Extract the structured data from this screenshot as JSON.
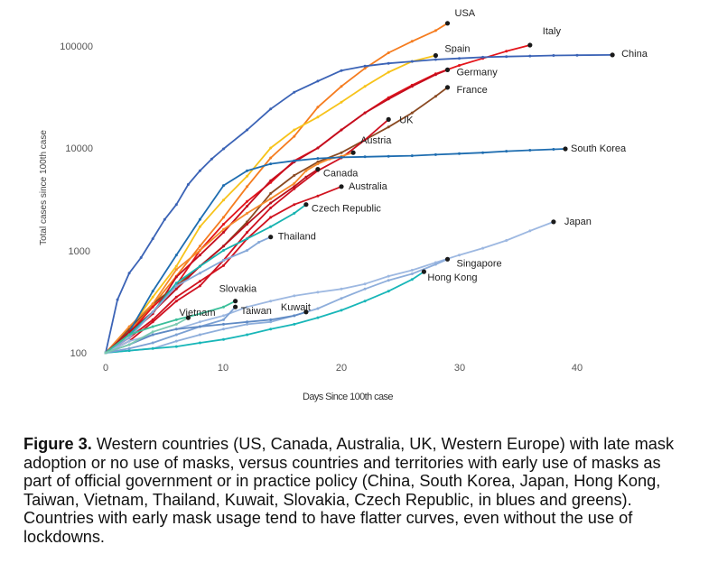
{
  "chart_data": {
    "type": "line",
    "xlabel": "Days Since 100th case",
    "ylabel": "Total cases since 100th case",
    "y_scale": "log",
    "xlim": [
      0,
      43
    ],
    "ylim": [
      100,
      150000
    ],
    "x_ticks": [
      "0",
      "10",
      "20",
      "30",
      "40"
    ],
    "y_ticks": [
      "100",
      "1000",
      "10000",
      "100000"
    ],
    "grid": false,
    "series": [
      {
        "name": "USA",
        "color": "#f57c1f",
        "x": [
          0,
          2,
          4,
          6,
          8,
          10,
          12,
          14,
          16,
          18,
          20,
          22,
          24,
          26,
          28,
          29
        ],
        "y": [
          100,
          160,
          290,
          560,
          1100,
          2100,
          4200,
          8000,
          13000,
          25000,
          40000,
          60000,
          85000,
          110000,
          140000,
          165000
        ]
      },
      {
        "name": "Spain",
        "color": "#f7c31a",
        "x": [
          0,
          2,
          4,
          6,
          8,
          10,
          12,
          14,
          16,
          18,
          20,
          22,
          24,
          26,
          28
        ],
        "y": [
          100,
          170,
          350,
          700,
          1700,
          3100,
          5300,
          10000,
          15000,
          20000,
          28000,
          40000,
          55000,
          70000,
          80000
        ]
      },
      {
        "name": "Italy",
        "color": "#e4141b",
        "x": [
          0,
          2,
          4,
          6,
          8,
          10,
          12,
          14,
          16,
          18,
          20,
          22,
          24,
          26,
          28,
          30,
          32,
          34,
          36
        ],
        "y": [
          100,
          155,
          280,
          460,
          1000,
          1800,
          3000,
          4600,
          7500,
          10000,
          15000,
          22000,
          31000,
          41000,
          53000,
          64000,
          75000,
          88000,
          101000
        ]
      },
      {
        "name": "China",
        "color": "#3b63b6",
        "x": [
          0,
          1,
          2,
          3,
          4,
          5,
          6,
          7,
          8,
          9,
          10,
          12,
          14,
          16,
          18,
          20,
          22,
          24,
          26,
          28,
          30,
          32,
          34,
          36,
          38,
          40,
          43
        ],
        "y": [
          100,
          330,
          600,
          850,
          1300,
          2000,
          2800,
          4400,
          6000,
          7800,
          9800,
          15000,
          24000,
          35000,
          45000,
          57000,
          63000,
          67000,
          70000,
          73000,
          75000,
          77000,
          78000,
          79000,
          80000,
          80500,
          81000
        ]
      },
      {
        "name": "Germany",
        "color": "#c40d1e",
        "x": [
          0,
          2,
          4,
          6,
          8,
          10,
          12,
          14,
          16,
          18,
          20,
          22,
          24,
          26,
          28,
          29
        ],
        "y": [
          100,
          150,
          240,
          550,
          900,
          1500,
          2700,
          4800,
          7300,
          10000,
          15000,
          22000,
          30000,
          40000,
          52000,
          58000
        ]
      },
      {
        "name": "France",
        "color": "#8a4a22",
        "x": [
          0,
          2,
          4,
          6,
          8,
          10,
          12,
          14,
          16,
          18,
          20,
          22,
          24,
          26,
          28,
          29
        ],
        "y": [
          100,
          170,
          300,
          450,
          700,
          1100,
          1900,
          3600,
          5400,
          7300,
          9000,
          12000,
          16000,
          22000,
          32000,
          39000
        ]
      },
      {
        "name": "UK",
        "color": "#cf1020",
        "x": [
          0,
          2,
          4,
          6,
          8,
          10,
          12,
          14,
          16,
          18,
          20,
          22,
          24
        ],
        "y": [
          100,
          130,
          200,
          320,
          450,
          800,
          1500,
          2600,
          4000,
          6000,
          8000,
          12000,
          19000
        ]
      },
      {
        "name": "Austria",
        "color": "#f58a2a",
        "x": [
          0,
          2,
          4,
          6,
          8,
          10,
          12,
          14,
          16,
          17,
          18,
          19,
          20,
          21
        ],
        "y": [
          100,
          180,
          300,
          650,
          1000,
          1600,
          2300,
          3200,
          4500,
          6000,
          7000,
          7800,
          8300,
          9000
        ]
      },
      {
        "name": "South Korea",
        "color": "#1e6db0",
        "x": [
          0,
          2,
          4,
          6,
          8,
          10,
          12,
          14,
          16,
          18,
          20,
          22,
          24,
          26,
          28,
          30,
          32,
          34,
          36,
          38,
          39
        ],
        "y": [
          100,
          160,
          400,
          900,
          2000,
          4300,
          6000,
          7000,
          7500,
          7900,
          8100,
          8200,
          8300,
          8400,
          8600,
          8800,
          9000,
          9300,
          9500,
          9700,
          9800
        ]
      },
      {
        "name": "Canada",
        "color": "#b8111d",
        "x": [
          0,
          2,
          4,
          6,
          8,
          10,
          12,
          14,
          16,
          17,
          18
        ],
        "y": [
          100,
          160,
          250,
          420,
          700,
          1100,
          1800,
          2900,
          4200,
          5200,
          6200
        ]
      },
      {
        "name": "Australia",
        "color": "#d0121e",
        "x": [
          0,
          2,
          4,
          6,
          8,
          10,
          12,
          14,
          16,
          18,
          20
        ],
        "y": [
          100,
          140,
          210,
          350,
          500,
          710,
          1300,
          2100,
          2800,
          3400,
          4200
        ]
      },
      {
        "name": "Czech Republic",
        "color": "#17b3b0",
        "x": [
          0,
          2,
          4,
          6,
          8,
          10,
          12,
          14,
          16,
          17
        ],
        "y": [
          100,
          150,
          250,
          480,
          700,
          1000,
          1300,
          1700,
          2300,
          2800
        ]
      },
      {
        "name": "Thailand",
        "color": "#86a8d8",
        "x": [
          0,
          2,
          4,
          6,
          8,
          10,
          12,
          13,
          14
        ],
        "y": [
          100,
          140,
          250,
          450,
          600,
          800,
          1000,
          1200,
          1350
        ]
      },
      {
        "name": "Japan",
        "color": "#9db8e1",
        "x": [
          0,
          2,
          4,
          6,
          8,
          10,
          12,
          14,
          16,
          18,
          20,
          22,
          24,
          26,
          28,
          30,
          32,
          34,
          36,
          38
        ],
        "y": [
          100,
          130,
          150,
          170,
          200,
          230,
          280,
          320,
          360,
          390,
          420,
          470,
          560,
          640,
          760,
          900,
          1050,
          1250,
          1550,
          1900
        ]
      },
      {
        "name": "Singapore",
        "color": "#8eaedb",
        "x": [
          0,
          2,
          4,
          6,
          8,
          10,
          12,
          14,
          16,
          18,
          20,
          22,
          24,
          26,
          28,
          29
        ],
        "y": [
          100,
          105,
          110,
          130,
          150,
          170,
          190,
          200,
          230,
          270,
          340,
          420,
          510,
          590,
          730,
          820
        ]
      },
      {
        "name": "Hong Kong",
        "color": "#18b6b8",
        "x": [
          0,
          2,
          4,
          6,
          8,
          10,
          12,
          14,
          16,
          18,
          20,
          22,
          24,
          26,
          27
        ],
        "y": [
          100,
          105,
          110,
          115,
          125,
          135,
          150,
          170,
          190,
          220,
          260,
          320,
          400,
          520,
          620
        ]
      },
      {
        "name": "Slovakia",
        "color": "#3bbf9a",
        "x": [
          0,
          2,
          4,
          6,
          8,
          10,
          11
        ],
        "y": [
          100,
          150,
          180,
          210,
          240,
          280,
          320
        ]
      },
      {
        "name": "Taiwan",
        "color": "#7ba0d3",
        "x": [
          0,
          2,
          4,
          6,
          8,
          10,
          11
        ],
        "y": [
          100,
          110,
          125,
          150,
          180,
          210,
          280
        ]
      },
      {
        "name": "Kuwait",
        "color": "#5f8ac4",
        "x": [
          0,
          2,
          4,
          6,
          8,
          10,
          12,
          14,
          16,
          17
        ],
        "y": [
          100,
          120,
          150,
          170,
          180,
          190,
          200,
          210,
          230,
          250
        ]
      },
      {
        "name": "Vietnam",
        "color": "#7ac9b0",
        "x": [
          0,
          2,
          4,
          6,
          7
        ],
        "y": [
          100,
          120,
          160,
          190,
          220
        ]
      }
    ]
  },
  "caption": {
    "label": "Figure 3.",
    "text": " Western countries (US, Canada, Australia, UK, Western Europe) with late mask adoption or no use of masks, versus countries and territories with early use of masks as part of official government or in practice policy (China, South Korea, Japan, Hong Kong, Taiwan, Vietnam, Thailand, Kuwait, Slovakia, Czech Republic, in blues and greens). Countries with early mask usage tend to have flatter curves, even without the use of lockdowns."
  }
}
